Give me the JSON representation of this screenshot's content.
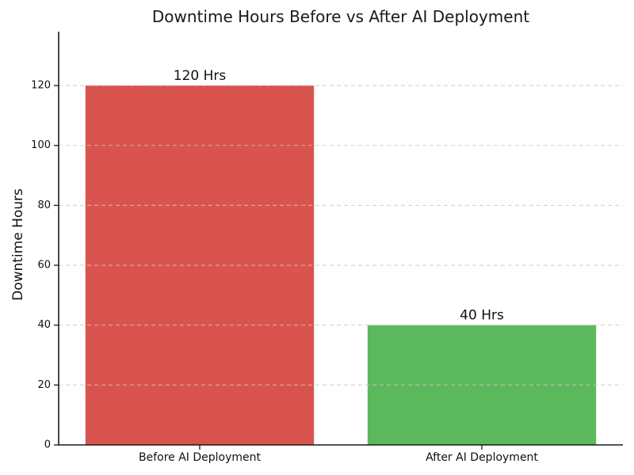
{
  "chart_data": {
    "type": "bar",
    "title": "Downtime Hours Before vs After AI Deployment",
    "categories": [
      "Before AI Deployment",
      "After AI Deployment"
    ],
    "values": [
      120,
      40
    ],
    "bar_labels": [
      "120 Hrs",
      "40 Hrs"
    ],
    "bar_colors": [
      "#d9534f",
      "#5cb85c"
    ],
    "xlabel": "",
    "ylabel": "Downtime Hours",
    "ylim": [
      0,
      138
    ],
    "yticks": [
      0,
      20,
      40,
      60,
      80,
      100,
      120
    ],
    "grid": "horizontal-dashed-over-bars",
    "legend": "none",
    "spines": [
      "left",
      "bottom"
    ],
    "background_color": "#ffffff",
    "text_color": "#111111"
  }
}
